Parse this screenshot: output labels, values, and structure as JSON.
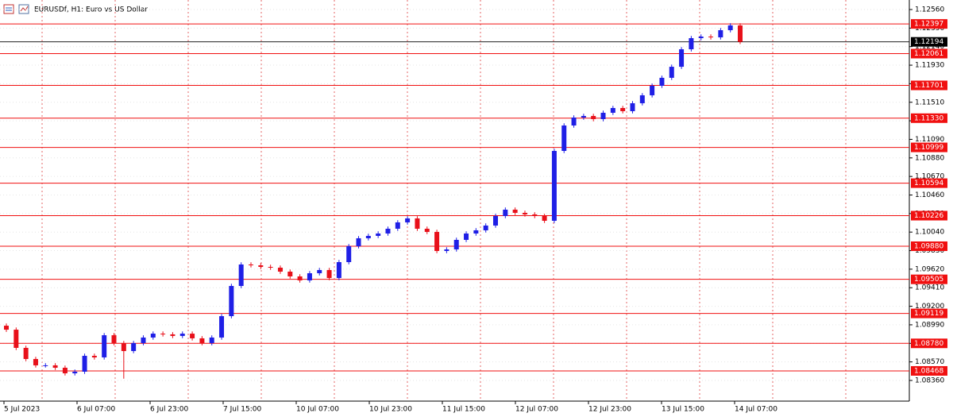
{
  "chart_data": {
    "type": "candlestick",
    "title": "EURUSDf, H1:  Euro vs US Dollar",
    "up_color": "#1f1fe6",
    "down_color": "#e8101a",
    "level_color": "#f01010",
    "grid": true,
    "ylim": [
      1.08126,
      1.12668
    ],
    "yticks": [
      {
        "value": 1.0836,
        "label": "1.08360"
      },
      {
        "value": 1.0857,
        "label": "1.08570"
      },
      {
        "value": 1.0878,
        "label": "1.08780"
      },
      {
        "value": 1.0899,
        "label": "1.08990"
      },
      {
        "value": 1.092,
        "label": "1.09200"
      },
      {
        "value": 1.0941,
        "label": "1.09410"
      },
      {
        "value": 1.0962,
        "label": "1.09620"
      },
      {
        "value": 1.0983,
        "label": "1.09830"
      },
      {
        "value": 1.1004,
        "label": "1.10040"
      },
      {
        "value": 1.1025,
        "label": "1.10250"
      },
      {
        "value": 1.1046,
        "label": "1.10460"
      },
      {
        "value": 1.1067,
        "label": "1.10670"
      },
      {
        "value": 1.1088,
        "label": "1.10880"
      },
      {
        "value": 1.1109,
        "label": "1.11090"
      },
      {
        "value": 1.113,
        "label": "1.11300"
      },
      {
        "value": 1.1151,
        "label": "1.11510"
      },
      {
        "value": 1.1172,
        "label": "1.11720"
      },
      {
        "value": 1.1193,
        "label": "1.11930"
      },
      {
        "value": 1.1214,
        "label": "1.12140"
      },
      {
        "value": 1.1235,
        "label": "1.12350"
      },
      {
        "value": 1.1256,
        "label": "1.12560"
      }
    ],
    "levels": [
      1.12397,
      1.12061,
      1.11701,
      {
        "value": 1.1133,
        "label": "1.11330"
      },
      1.10999,
      1.10594,
      1.10226,
      {
        "value": 1.0988,
        "label": "1.09880"
      },
      1.09505,
      1.09119,
      {
        "value": 1.0878,
        "label": "1.08780"
      },
      1.08468
    ],
    "current_price": 1.12194,
    "x_labels": [
      "5 Jul 2023",
      "6 Jul 07:00",
      "6 Jul 23:00",
      "7 Jul 15:00",
      "10 Jul 07:00",
      "10 Jul 23:00",
      "11 Jul 15:00",
      "12 Jul 07:00",
      "12 Jul 23:00",
      "13 Jul 15:00",
      "14 Jul 07:00"
    ],
    "open": [
      1.0898,
      1.08935,
      1.08729,
      1.08603,
      1.08531,
      1.08531,
      1.08504,
      1.08441,
      1.08459,
      1.08639,
      1.08621,
      1.08872,
      1.08783,
      1.08693,
      1.08783,
      1.08846,
      1.0889,
      1.08882,
      1.08864,
      1.0889,
      1.08837,
      1.08783,
      1.08846,
      1.09088,
      1.0943,
      1.09673,
      1.09664,
      1.09646,
      1.09637,
      1.09592,
      1.09538,
      1.09493,
      1.09574,
      1.0961,
      1.0952,
      1.097,
      1.0988,
      1.0997,
      1.09997,
      1.10024,
      1.10078,
      1.1015,
      1.10195,
      1.10078,
      1.10042,
      1.09826,
      1.09844,
      1.09952,
      1.10024,
      1.1006,
      1.10114,
      1.10222,
      1.10294,
      1.10258,
      1.1024,
      1.10222,
      1.10168,
      1.10959,
      1.11247,
      1.11337,
      1.11355,
      1.11319,
      1.11391,
      1.11445,
      1.11409,
      1.11499,
      1.11589,
      1.11697,
      1.11787,
      1.11912,
      1.1211,
      1.12236,
      1.12254,
      1.12245,
      1.12326,
      1.1238
    ],
    "high": [
      1.09005,
      1.0896,
      1.08754,
      1.08628,
      1.08556,
      1.08556,
      1.08529,
      1.08484,
      1.08664,
      1.08664,
      1.08897,
      1.08897,
      1.08808,
      1.08808,
      1.08871,
      1.08915,
      1.08915,
      1.08907,
      1.08915,
      1.08915,
      1.08862,
      1.08871,
      1.09113,
      1.09455,
      1.09698,
      1.09698,
      1.09689,
      1.09671,
      1.09662,
      1.09617,
      1.09563,
      1.09599,
      1.09635,
      1.09635,
      1.09725,
      1.09905,
      1.09995,
      1.10022,
      1.10049,
      1.10103,
      1.10175,
      1.1022,
      1.1022,
      1.10103,
      1.10067,
      1.09869,
      1.09977,
      1.10049,
      1.10085,
      1.10139,
      1.10247,
      1.10319,
      1.10319,
      1.10283,
      1.10265,
      1.10247,
      1.10984,
      1.11272,
      1.11362,
      1.1138,
      1.1138,
      1.11416,
      1.1147,
      1.1147,
      1.11524,
      1.11614,
      1.11722,
      1.11812,
      1.11937,
      1.12135,
      1.12261,
      1.12279,
      1.12279,
      1.12351,
      1.12405,
      1.12405
    ],
    "low": [
      1.0891,
      1.08704,
      1.08578,
      1.08506,
      1.08506,
      1.08479,
      1.08416,
      1.08416,
      1.08434,
      1.08596,
      1.08596,
      1.08758,
      1.0838,
      1.08668,
      1.08758,
      1.08821,
      1.08857,
      1.08839,
      1.08839,
      1.08812,
      1.08758,
      1.08758,
      1.08821,
      1.09063,
      1.09405,
      1.09639,
      1.09621,
      1.09612,
      1.09567,
      1.09513,
      1.09468,
      1.09468,
      1.09549,
      1.09495,
      1.09495,
      1.09675,
      1.09855,
      1.09945,
      1.09972,
      1.09999,
      1.10053,
      1.10125,
      1.10053,
      1.10017,
      1.09801,
      1.09801,
      1.09819,
      1.09927,
      1.09999,
      1.10035,
      1.10089,
      1.10197,
      1.10233,
      1.10215,
      1.10197,
      1.10143,
      1.10143,
      1.10934,
      1.11222,
      1.11312,
      1.11294,
      1.11294,
      1.11366,
      1.11384,
      1.11384,
      1.11474,
      1.11564,
      1.11672,
      1.11762,
      1.11887,
      1.12085,
      1.12211,
      1.1222,
      1.1222,
      1.12301,
      1.12169
    ],
    "close": [
      1.08935,
      1.08729,
      1.08603,
      1.08531,
      1.08531,
      1.08504,
      1.08441,
      1.08459,
      1.08639,
      1.08621,
      1.08872,
      1.08783,
      1.08693,
      1.08783,
      1.08846,
      1.0889,
      1.08882,
      1.08864,
      1.0889,
      1.08837,
      1.08783,
      1.08846,
      1.09088,
      1.0943,
      1.09673,
      1.09664,
      1.09646,
      1.09637,
      1.09592,
      1.09538,
      1.09493,
      1.09574,
      1.0961,
      1.0952,
      1.097,
      1.0988,
      1.0997,
      1.09997,
      1.10024,
      1.10078,
      1.1015,
      1.10195,
      1.10078,
      1.10042,
      1.09826,
      1.09844,
      1.09952,
      1.10024,
      1.1006,
      1.10114,
      1.10222,
      1.10294,
      1.10258,
      1.1024,
      1.10222,
      1.10168,
      1.10959,
      1.11247,
      1.11337,
      1.11355,
      1.11319,
      1.11391,
      1.11445,
      1.11409,
      1.11499,
      1.11589,
      1.11697,
      1.11787,
      1.11912,
      1.1211,
      1.12236,
      1.12254,
      1.12245,
      1.12326,
      1.1238,
      1.12194
    ]
  }
}
